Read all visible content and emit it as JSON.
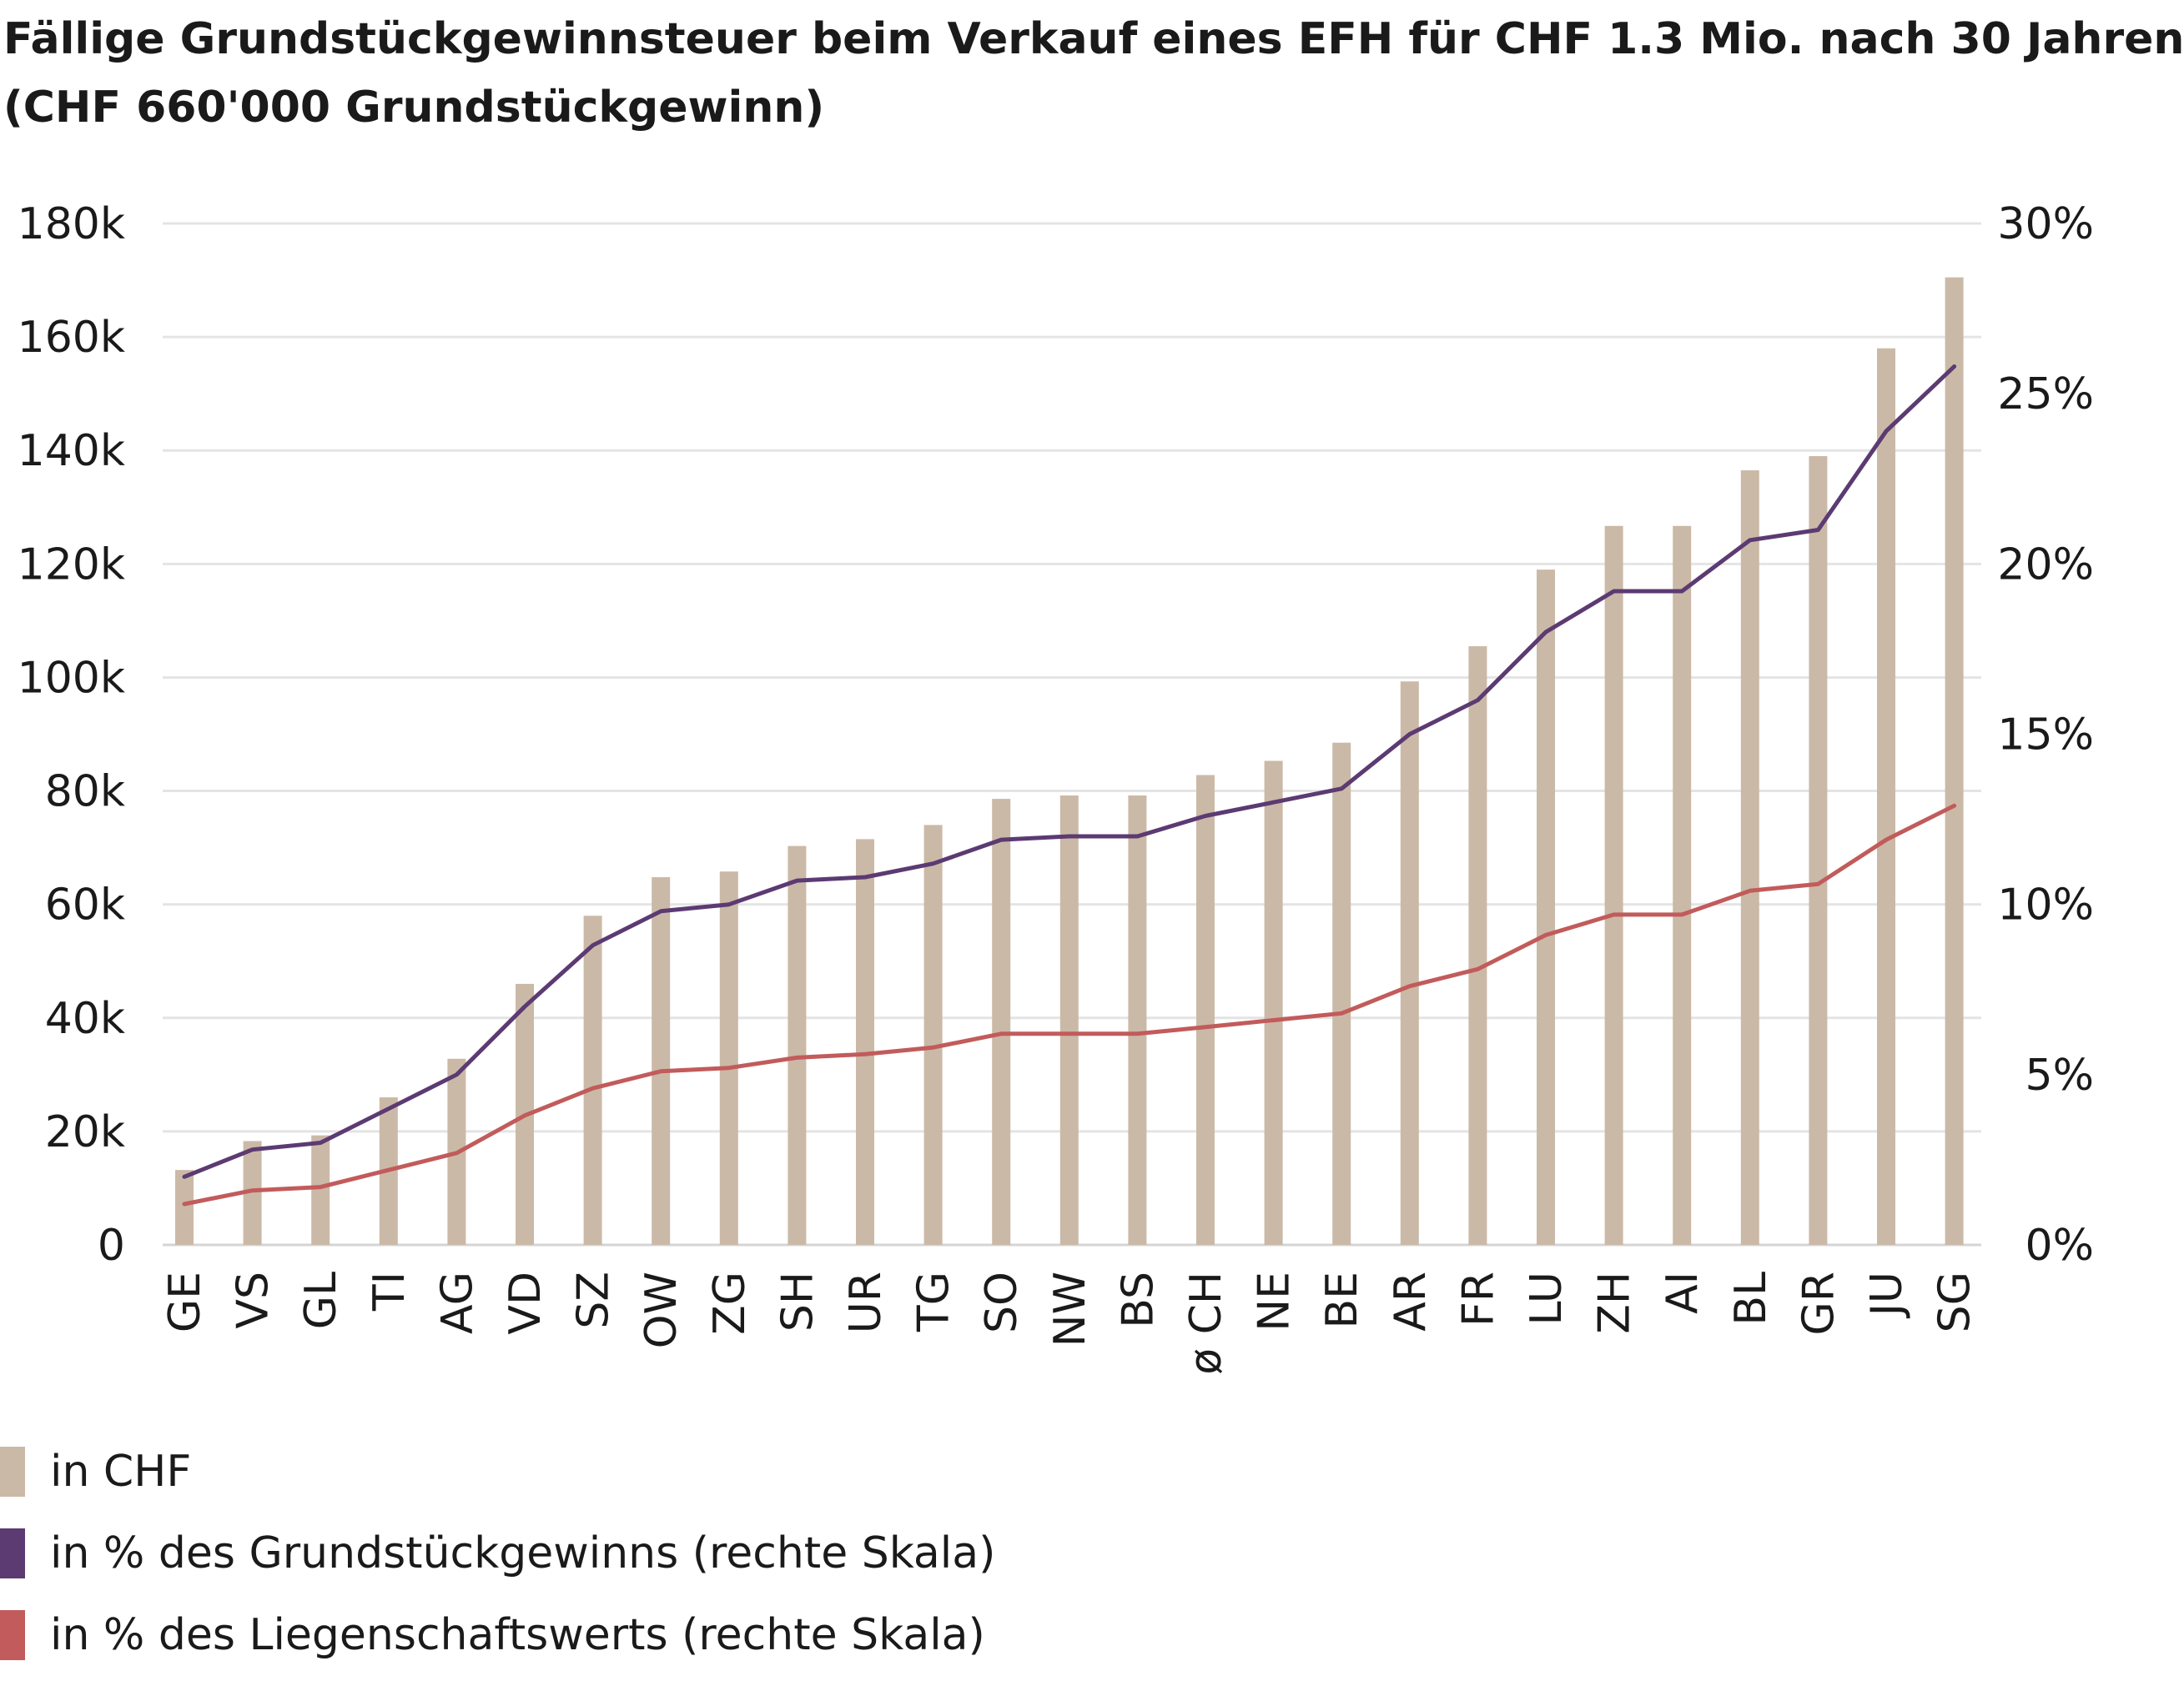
{
  "title": {
    "line1": "Fällige Grundstückgewinnsteuer beim Verkauf eines EFH für CHF 1.3 Mio. nach 30 Jahren",
    "line2": "(CHF 660'000 Grundstückgewinn)"
  },
  "chart_data": {
    "type": "bar",
    "title": "Fällige Grundstückgewinnsteuer beim Verkauf eines EFH für CHF 1.3 Mio. nach 30 Jahren (CHF 660'000 Grundstückgewinn)",
    "categories": [
      "GE",
      "VS",
      "GL",
      "TI",
      "AG",
      "VD",
      "SZ",
      "OW",
      "ZG",
      "SH",
      "UR",
      "TG",
      "SO",
      "NW",
      "BS",
      "ø CH",
      "NE",
      "BE",
      "AR",
      "FR",
      "LU",
      "ZH",
      "AI",
      "BL",
      "GR",
      "JU",
      "SG"
    ],
    "series": [
      {
        "name": "in CHF",
        "type": "bar",
        "axis": "left",
        "color": "#cbb9a7",
        "values": [
          13200,
          18300,
          19300,
          26000,
          32800,
          46000,
          58000,
          64800,
          65800,
          70300,
          71500,
          74000,
          78600,
          79200,
          79200,
          82800,
          85300,
          88500,
          99300,
          105500,
          119000,
          126700,
          126700,
          136500,
          139000,
          158000,
          170500
        ]
      },
      {
        "name": "in % des Grundstückgewinns (rechte Skala)",
        "type": "line",
        "axis": "right",
        "color": "#5c3a72",
        "values": [
          2.0,
          2.8,
          3.0,
          4.0,
          5.0,
          7.0,
          8.8,
          9.8,
          10.0,
          10.7,
          10.8,
          11.2,
          11.9,
          12.0,
          12.0,
          12.6,
          13.0,
          13.4,
          15.0,
          16.0,
          18.0,
          19.2,
          19.2,
          20.7,
          21.0,
          23.9,
          25.8
        ]
      },
      {
        "name": "in % des Liegenschaftswerts (rechte Skala)",
        "type": "line",
        "axis": "right",
        "color": "#c25b5b",
        "values": [
          1.2,
          1.6,
          1.7,
          2.2,
          2.7,
          3.8,
          4.6,
          5.1,
          5.2,
          5.5,
          5.6,
          5.8,
          6.2,
          6.2,
          6.2,
          6.4,
          6.6,
          6.8,
          7.6,
          8.1,
          9.1,
          9.7,
          9.7,
          10.4,
          10.6,
          11.9,
          12.9
        ]
      }
    ],
    "y_left": {
      "ylim": [
        0,
        180000
      ],
      "ticks": [
        0,
        20000,
        40000,
        60000,
        80000,
        100000,
        120000,
        140000,
        160000,
        180000
      ],
      "tick_labels": [
        "0",
        "20k",
        "40k",
        "60k",
        "80k",
        "100k",
        "120k",
        "140k",
        "160k",
        "180k"
      ]
    },
    "y_right": {
      "ylim": [
        0,
        30
      ],
      "ticks": [
        0,
        5,
        10,
        15,
        20,
        25,
        30
      ],
      "tick_labels": [
        "0%",
        "5%",
        "10%",
        "15%",
        "20%",
        "25%",
        "30%"
      ]
    },
    "grid": true,
    "gridline_color": "#e4e4e4",
    "legend_position": "bottom-left",
    "xlabel": "",
    "ylabel": ""
  }
}
